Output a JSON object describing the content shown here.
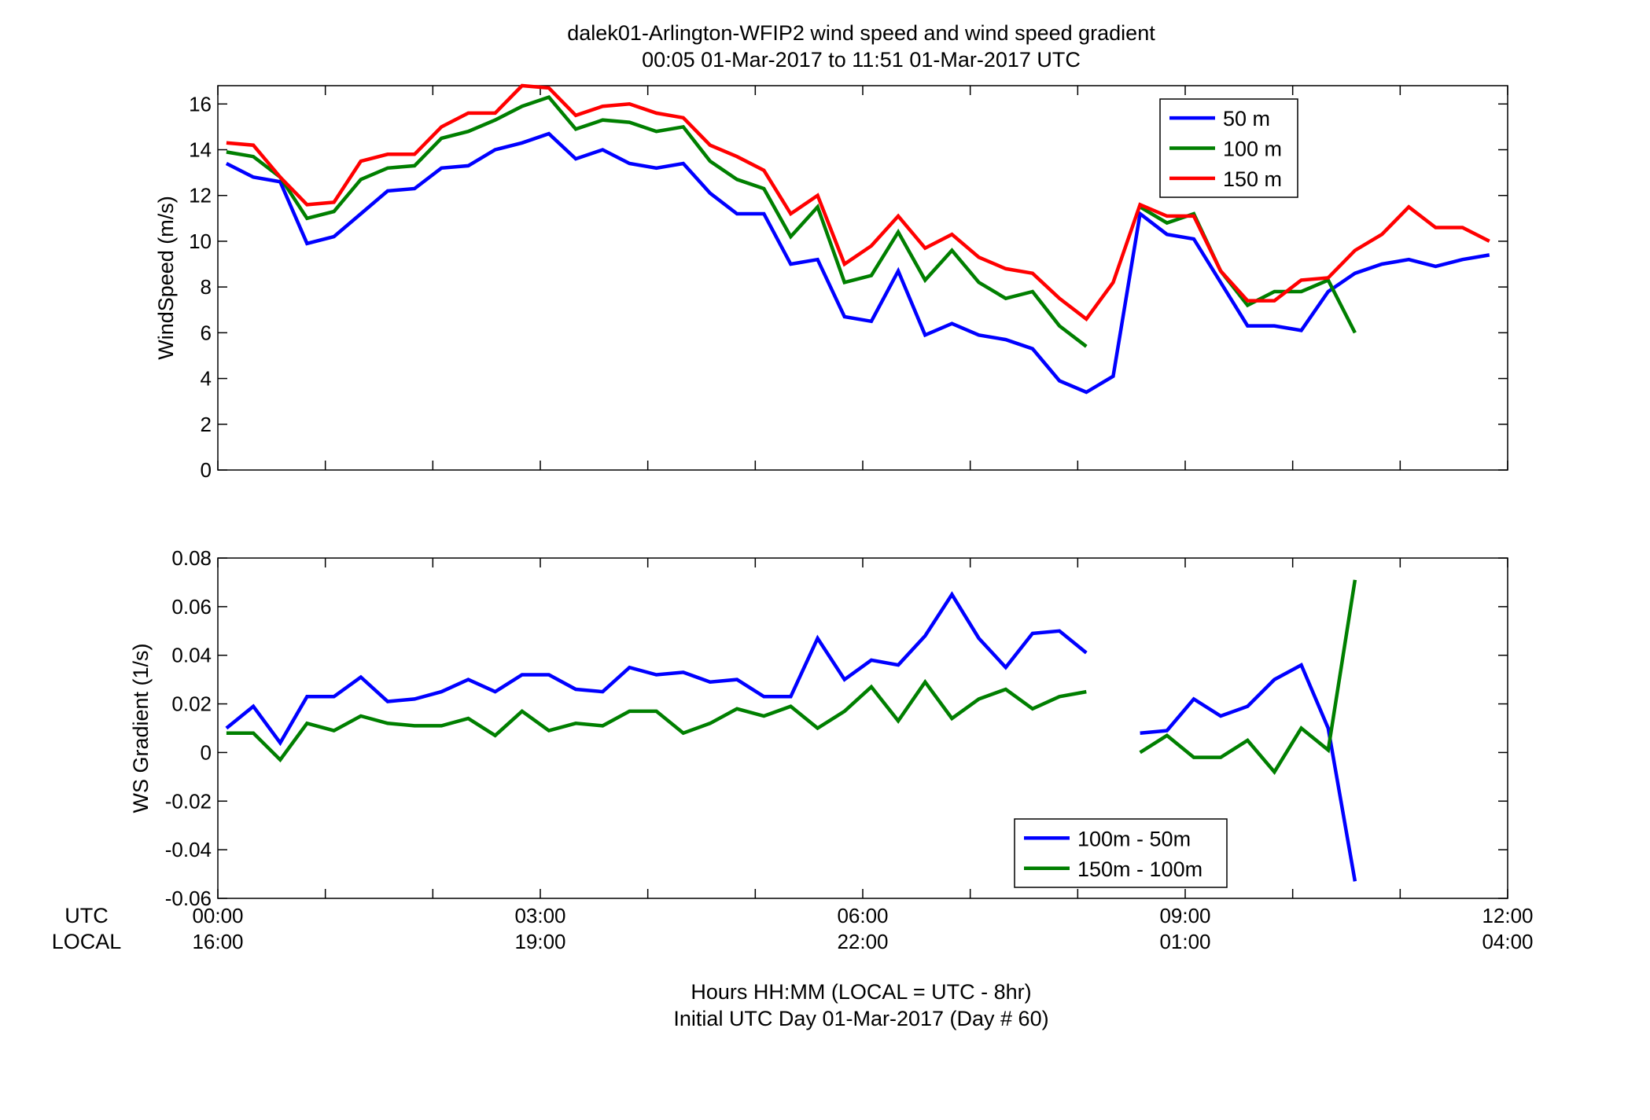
{
  "title": {
    "line1": "dalek01-Arlington-WFIP2  wind speed and wind speed gradient",
    "line2": "00:05 01-Mar-2017 to 11:51 01-Mar-2017  UTC"
  },
  "x_axis": {
    "row_labels": [
      "UTC",
      "LOCAL"
    ],
    "utc_ticks": [
      "00:00",
      "03:00",
      "06:00",
      "09:00",
      "12:00"
    ],
    "local_ticks": [
      "16:00",
      "19:00",
      "22:00",
      "01:00",
      "04:00"
    ],
    "xlabel_line1": "Hours HH:MM  (LOCAL = UTC - 8hr)",
    "xlabel_line2": "Initial UTC Day 01-Mar-2017 (Day # 60)"
  },
  "colors": {
    "blue": "#0000ff",
    "green": "#007f00",
    "red": "#ff0000"
  },
  "chart_data": [
    {
      "type": "line",
      "ylabel": "WindSpeed (m/s)",
      "xlim": [
        0,
        12
      ],
      "ylim": [
        0,
        16.8
      ],
      "yticks": [
        0,
        2,
        4,
        6,
        8,
        10,
        12,
        14,
        16
      ],
      "x_unit": "hours UTC",
      "x": [
        0.08,
        0.33,
        0.58,
        0.83,
        1.08,
        1.33,
        1.58,
        1.83,
        2.08,
        2.33,
        2.58,
        2.83,
        3.08,
        3.33,
        3.58,
        3.83,
        4.08,
        4.33,
        4.58,
        4.83,
        5.08,
        5.33,
        5.58,
        5.83,
        6.08,
        6.33,
        6.58,
        6.83,
        7.08,
        7.33,
        7.58,
        7.83,
        8.08,
        8.33,
        8.58,
        8.83,
        9.08,
        9.33,
        9.58,
        9.83,
        10.08,
        10.33,
        10.58,
        10.83,
        11.08,
        11.33,
        11.58,
        11.83
      ],
      "legend": {
        "location": "top-right"
      },
      "series": [
        {
          "name": "50 m",
          "color": "#0000ff",
          "values": [
            13.4,
            12.8,
            12.6,
            9.9,
            10.2,
            11.2,
            12.2,
            12.3,
            13.2,
            13.3,
            14.0,
            14.3,
            14.7,
            13.6,
            14.0,
            13.4,
            13.2,
            13.4,
            12.1,
            11.2,
            11.2,
            9.0,
            9.2,
            6.7,
            6.5,
            8.7,
            5.9,
            6.4,
            5.9,
            5.7,
            5.3,
            3.9,
            3.4,
            4.1,
            11.2,
            10.3,
            10.1,
            8.2,
            6.3,
            6.3,
            6.1,
            7.8,
            8.6,
            9.0,
            9.2,
            8.9,
            9.2,
            9.4
          ]
        },
        {
          "name": "100 m",
          "color": "#007f00",
          "values": [
            13.9,
            13.7,
            12.8,
            11.0,
            11.3,
            12.7,
            13.2,
            13.3,
            14.5,
            14.8,
            15.3,
            15.9,
            16.3,
            14.9,
            15.3,
            15.2,
            14.8,
            15.0,
            13.5,
            12.7,
            12.3,
            10.2,
            11.5,
            8.2,
            8.5,
            10.4,
            8.3,
            9.6,
            8.2,
            7.5,
            7.8,
            6.3,
            5.4,
            null,
            11.5,
            10.8,
            11.2,
            8.7,
            7.2,
            7.8,
            7.8,
            8.3,
            6.0,
            null,
            null,
            null,
            null,
            null
          ]
        },
        {
          "name": "150 m",
          "color": "#ff0000",
          "values": [
            14.3,
            14.2,
            12.8,
            11.6,
            11.7,
            13.5,
            13.8,
            13.8,
            15.0,
            15.6,
            15.6,
            16.8,
            16.7,
            15.5,
            15.9,
            16.0,
            15.6,
            15.4,
            14.2,
            13.7,
            13.1,
            11.2,
            12.0,
            9.0,
            9.8,
            11.1,
            9.7,
            10.3,
            9.3,
            8.8,
            8.6,
            7.5,
            6.6,
            8.2,
            11.6,
            11.1,
            11.1,
            8.7,
            7.4,
            7.4,
            8.3,
            8.4,
            9.6,
            10.3,
            11.5,
            10.6,
            10.6,
            10.0
          ]
        }
      ]
    },
    {
      "type": "line",
      "ylabel": "WS Gradient (1/s)",
      "xlim": [
        0,
        12
      ],
      "ylim": [
        -0.06,
        0.08
      ],
      "yticks": [
        -0.06,
        -0.04,
        -0.02,
        0,
        0.02,
        0.04,
        0.06,
        0.08
      ],
      "ytick_labels": [
        "-0.06",
        "-0.04",
        "-0.02",
        "0",
        "0.02",
        "0.04",
        "0.06",
        "0.08"
      ],
      "x_unit": "hours UTC",
      "x": [
        0.08,
        0.33,
        0.58,
        0.83,
        1.08,
        1.33,
        1.58,
        1.83,
        2.08,
        2.33,
        2.58,
        2.83,
        3.08,
        3.33,
        3.58,
        3.83,
        4.08,
        4.33,
        4.58,
        4.83,
        5.08,
        5.33,
        5.58,
        5.83,
        6.08,
        6.33,
        6.58,
        6.83,
        7.08,
        7.33,
        7.58,
        7.83,
        8.08,
        8.33,
        8.58,
        8.83,
        9.08,
        9.33,
        9.58,
        9.83,
        10.08,
        10.33,
        10.58
      ],
      "legend": {
        "location": "bottom-center"
      },
      "series": [
        {
          "name": "100m - 50m",
          "color": "#0000ff",
          "values": [
            0.01,
            0.019,
            0.004,
            0.023,
            0.023,
            0.031,
            0.021,
            0.022,
            0.025,
            0.03,
            0.025,
            0.032,
            0.032,
            0.026,
            0.025,
            0.035,
            0.032,
            0.033,
            0.029,
            0.03,
            0.023,
            0.023,
            0.047,
            0.03,
            0.038,
            0.036,
            0.048,
            0.065,
            0.047,
            0.035,
            0.049,
            0.05,
            0.041,
            null,
            0.008,
            0.009,
            0.022,
            0.015,
            0.019,
            0.03,
            0.036,
            0.01,
            -0.053
          ]
        },
        {
          "name": "150m - 100m",
          "color": "#007f00",
          "values": [
            0.008,
            0.008,
            -0.003,
            0.012,
            0.009,
            0.015,
            0.012,
            0.011,
            0.011,
            0.014,
            0.007,
            0.017,
            0.009,
            0.012,
            0.011,
            0.017,
            0.017,
            0.008,
            0.012,
            0.018,
            0.015,
            0.019,
            0.01,
            0.017,
            0.027,
            0.013,
            0.029,
            0.014,
            0.022,
            0.026,
            0.018,
            0.023,
            0.025,
            null,
            0.0,
            0.007,
            -0.002,
            -0.002,
            0.005,
            -0.008,
            0.01,
            0.001,
            0.071
          ]
        }
      ]
    }
  ]
}
